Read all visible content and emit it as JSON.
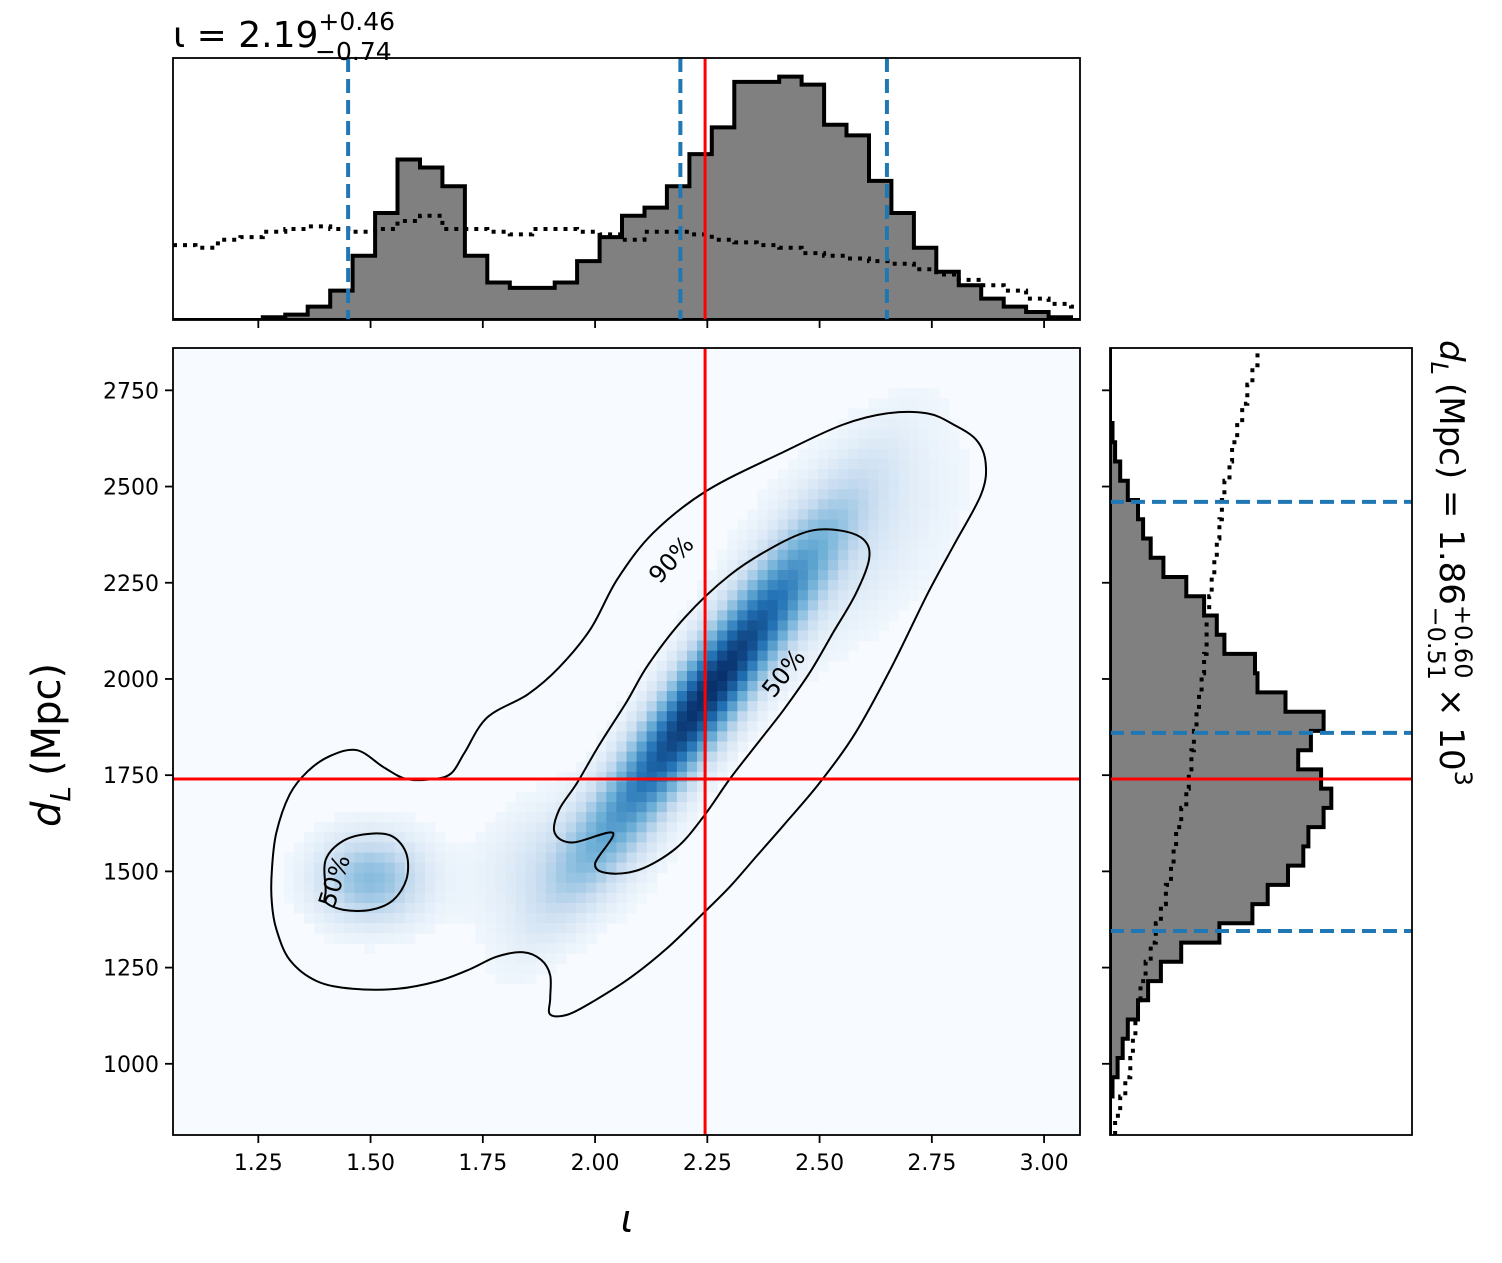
{
  "chart_data": {
    "type": "corner-2d-posterior",
    "colors": {
      "injection": "#ff0000",
      "quantile": "#1f77b4",
      "histogram_fill": "#808080",
      "histogram_edge": "#000000",
      "prior": "#000000",
      "density_low": "#f7fbff",
      "density_high": "#08306b"
    },
    "x": {
      "label": "ι",
      "lim": [
        1.06,
        3.08
      ],
      "ticks": [
        1.25,
        1.5,
        1.75,
        2.0,
        2.25,
        2.5,
        2.75,
        3.0
      ],
      "tick_labels": [
        "1.25",
        "1.50",
        "1.75",
        "2.00",
        "2.25",
        "2.50",
        "2.75",
        "3.00"
      ]
    },
    "y": {
      "label_main": "d",
      "label_sub": "L",
      "label_unit": "(Mpc)",
      "lim": [
        815,
        2860
      ],
      "ticks": [
        1000,
        1250,
        1500,
        1750,
        2000,
        2250,
        2500,
        2750
      ],
      "tick_labels": [
        "1000",
        "1250",
        "1500",
        "1750",
        "2000",
        "2250",
        "2500",
        "2750"
      ]
    },
    "top_title": {
      "prefix": "ι = 2.19",
      "sup": "+0.46",
      "sub": "−0.74"
    },
    "right_title": {
      "prefix": "d",
      "sub_var": "L",
      "mid": "(Mpc) = 1.86",
      "sup": "+0.60",
      "sub": "−0.51",
      "suffix": "× 10",
      "exp": "3"
    },
    "injection": {
      "x": 2.245,
      "y": 1740
    },
    "quantiles_x": [
      1.45,
      2.19,
      2.65
    ],
    "quantiles_y": [
      1345,
      1860,
      2460
    ],
    "density_components": [
      {
        "mx": 2.25,
        "my": 1960,
        "sx": 0.17,
        "sy": 270,
        "rho": 0.93,
        "w": 1.0
      },
      {
        "mx": 1.5,
        "my": 1480,
        "sx": 0.08,
        "sy": 75,
        "rho": 0.0,
        "w": 0.36
      },
      {
        "mx": 1.93,
        "my": 1530,
        "sx": 0.12,
        "sy": 110,
        "rho": 0.3,
        "w": 0.14
      },
      {
        "mx": 2.55,
        "my": 2350,
        "sx": 0.15,
        "sy": 180,
        "rho": 0.5,
        "w": 0.12
      }
    ],
    "contours": [
      {
        "level": "90%",
        "points": [
          [
            1.41,
            1800
          ],
          [
            1.36,
            1760
          ],
          [
            1.32,
            1700
          ],
          [
            1.29,
            1600
          ],
          [
            1.28,
            1500
          ],
          [
            1.28,
            1420
          ],
          [
            1.29,
            1350
          ],
          [
            1.32,
            1270
          ],
          [
            1.38,
            1215
          ],
          [
            1.46,
            1195
          ],
          [
            1.56,
            1195
          ],
          [
            1.65,
            1215
          ],
          [
            1.72,
            1245
          ],
          [
            1.78,
            1278
          ],
          [
            1.84,
            1290
          ],
          [
            1.88,
            1270
          ],
          [
            1.9,
            1230
          ],
          [
            1.9,
            1170
          ],
          [
            1.9,
            1128
          ],
          [
            1.94,
            1128
          ],
          [
            2.0,
            1165
          ],
          [
            2.08,
            1225
          ],
          [
            2.16,
            1300
          ],
          [
            2.24,
            1390
          ],
          [
            2.3,
            1460
          ],
          [
            2.36,
            1540
          ],
          [
            2.42,
            1620
          ],
          [
            2.5,
            1730
          ],
          [
            2.58,
            1860
          ],
          [
            2.66,
            2030
          ],
          [
            2.74,
            2220
          ],
          [
            2.8,
            2350
          ],
          [
            2.86,
            2480
          ],
          [
            2.87,
            2560
          ],
          [
            2.85,
            2620
          ],
          [
            2.8,
            2660
          ],
          [
            2.74,
            2690
          ],
          [
            2.65,
            2690
          ],
          [
            2.55,
            2660
          ],
          [
            2.42,
            2590
          ],
          [
            2.25,
            2490
          ],
          [
            2.13,
            2380
          ],
          [
            2.05,
            2260
          ],
          [
            1.99,
            2130
          ],
          [
            1.92,
            2030
          ],
          [
            1.85,
            1960
          ],
          [
            1.76,
            1900
          ],
          [
            1.71,
            1810
          ],
          [
            1.68,
            1755
          ],
          [
            1.64,
            1740
          ],
          [
            1.58,
            1740
          ],
          [
            1.53,
            1770
          ],
          [
            1.47,
            1815
          ]
        ]
      },
      {
        "level": "50%",
        "points": [
          [
            2.04,
            1600
          ],
          [
            2.0,
            1520
          ],
          [
            2.03,
            1495
          ],
          [
            2.1,
            1505
          ],
          [
            2.18,
            1560
          ],
          [
            2.24,
            1640
          ],
          [
            2.3,
            1740
          ],
          [
            2.36,
            1830
          ],
          [
            2.42,
            1920
          ],
          [
            2.48,
            2020
          ],
          [
            2.53,
            2120
          ],
          [
            2.58,
            2220
          ],
          [
            2.61,
            2310
          ],
          [
            2.6,
            2360
          ],
          [
            2.55,
            2385
          ],
          [
            2.48,
            2385
          ],
          [
            2.4,
            2345
          ],
          [
            2.3,
            2270
          ],
          [
            2.2,
            2160
          ],
          [
            2.12,
            2040
          ],
          [
            2.07,
            1940
          ],
          [
            2.01,
            1830
          ],
          [
            1.96,
            1730
          ],
          [
            1.92,
            1660
          ],
          [
            1.91,
            1600
          ],
          [
            1.95,
            1575
          ]
        ]
      },
      {
        "level": "50%",
        "points": [
          [
            1.4,
            1450
          ],
          [
            1.4,
            1530
          ],
          [
            1.44,
            1580
          ],
          [
            1.5,
            1598
          ],
          [
            1.55,
            1590
          ],
          [
            1.58,
            1545
          ],
          [
            1.58,
            1480
          ],
          [
            1.55,
            1425
          ],
          [
            1.5,
            1400
          ],
          [
            1.44,
            1400
          ],
          [
            1.4,
            1420
          ]
        ]
      }
    ],
    "contour_labels": [
      {
        "text": "90%",
        "x": 2.17,
        "y": 2310,
        "angle": -48
      },
      {
        "text": "50%",
        "x": 2.42,
        "y": 2015,
        "angle": -52
      },
      {
        "text": "50%",
        "x": 1.42,
        "y": 1475,
        "angle": -72
      }
    ],
    "hist_x": {
      "edges_start": 1.06,
      "bin_width": 0.05,
      "counts": [
        0,
        0,
        0,
        0,
        0.01,
        0.02,
        0.05,
        0.11,
        0.24,
        0.4,
        0.6,
        0.57,
        0.5,
        0.24,
        0.14,
        0.12,
        0.12,
        0.14,
        0.22,
        0.31,
        0.39,
        0.42,
        0.5,
        0.62,
        0.72,
        0.89,
        0.89,
        0.91,
        0.88,
        0.73,
        0.69,
        0.52,
        0.4,
        0.27,
        0.18,
        0.13,
        0.08,
        0.05,
        0.03,
        0.01,
        0
      ]
    },
    "prior_x": {
      "edges_start": 1.06,
      "bin_width": 0.05,
      "counts": [
        0.28,
        0.27,
        0.3,
        0.31,
        0.33,
        0.34,
        0.35,
        0.34,
        0.33,
        0.34,
        0.37,
        0.39,
        0.34,
        0.34,
        0.33,
        0.32,
        0.34,
        0.34,
        0.33,
        0.32,
        0.3,
        0.33,
        0.33,
        0.32,
        0.3,
        0.29,
        0.28,
        0.27,
        0.25,
        0.24,
        0.23,
        0.22,
        0.21,
        0.19,
        0.17,
        0.15,
        0.13,
        0.11,
        0.08,
        0.06,
        0.05
      ]
    },
    "hist_y": {
      "edges_start": 815,
      "bin_width": 50,
      "counts": [
        0,
        0,
        0.01,
        0.03,
        0.05,
        0.07,
        0.11,
        0.15,
        0.2,
        0.28,
        0.43,
        0.56,
        0.62,
        0.7,
        0.76,
        0.78,
        0.84,
        0.87,
        0.83,
        0.74,
        0.79,
        0.84,
        0.69,
        0.58,
        0.57,
        0.45,
        0.42,
        0.37,
        0.3,
        0.21,
        0.16,
        0.13,
        0.11,
        0.07,
        0.04,
        0.02,
        0.01,
        0,
        0,
        0,
        0
      ]
    },
    "prior_y": {
      "edges_start": 815,
      "bin_width": 50,
      "counts": [
        0.02,
        0.04,
        0.06,
        0.08,
        0.09,
        0.1,
        0.11,
        0.12,
        0.14,
        0.16,
        0.18,
        0.2,
        0.22,
        0.24,
        0.25,
        0.26,
        0.28,
        0.3,
        0.31,
        0.32,
        0.33,
        0.34,
        0.35,
        0.36,
        0.37,
        0.38,
        0.38,
        0.39,
        0.4,
        0.41,
        0.42,
        0.43,
        0.44,
        0.45,
        0.47,
        0.48,
        0.5,
        0.52,
        0.54,
        0.56,
        0.58
      ]
    }
  }
}
